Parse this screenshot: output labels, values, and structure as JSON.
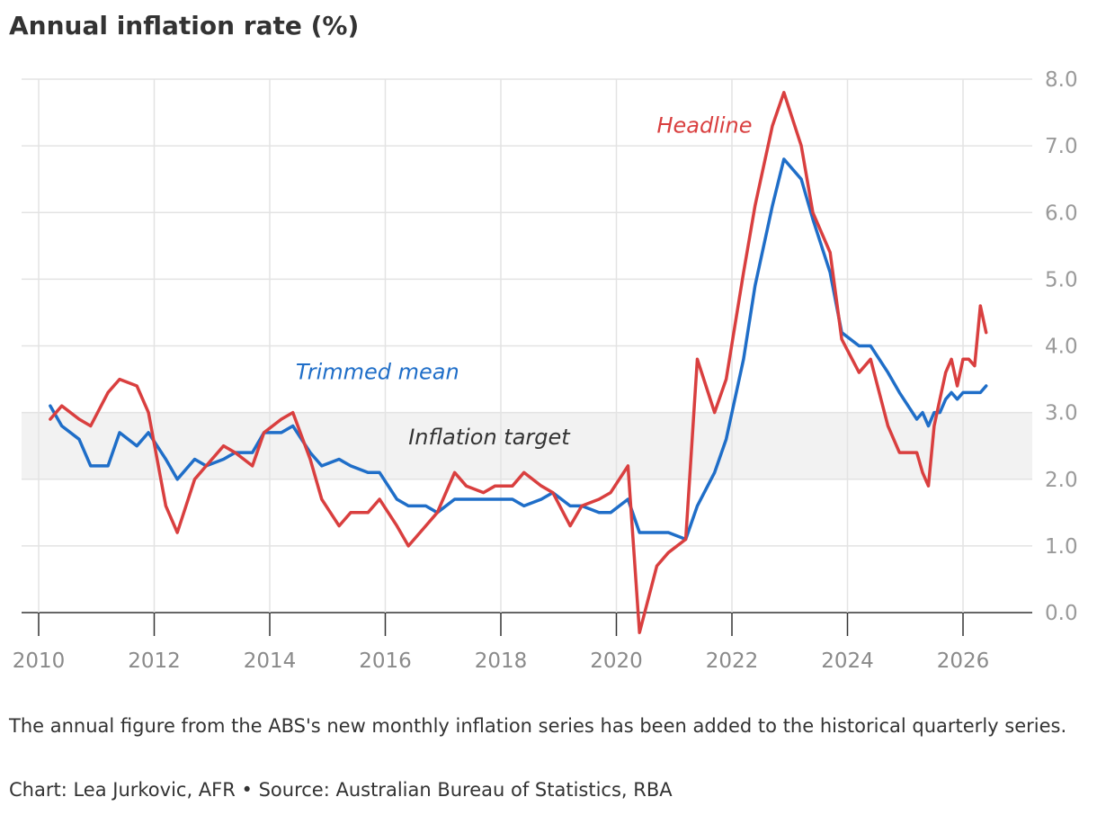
{
  "title": "Annual inflation rate (%)",
  "note": "The annual figure from the ABS's new monthly inflation series has been added to the historical quarterly series.",
  "source": "Chart: Lea Jurkovic, AFR • Source: Australian Bureau of Statistics, RBA",
  "chart_data": {
    "type": "line",
    "title": "Annual inflation rate (%)",
    "xlim": [
      2010,
      2027
    ],
    "ylim": [
      -0.3,
      8.0
    ],
    "x_ticks": [
      2010,
      2012,
      2014,
      2016,
      2018,
      2020,
      2022,
      2024,
      2026
    ],
    "y_ticks": [
      0.0,
      1.0,
      2.0,
      3.0,
      4.0,
      5.0,
      6.0,
      7.0,
      8.0
    ],
    "y_tick_labels": [
      "0.0",
      "1.0",
      "2.0",
      "3.0",
      "4.0",
      "5.0",
      "6.0",
      "7.0",
      "8.0"
    ],
    "y_axis_side": "right",
    "grid": true,
    "colors": {
      "headline": "#d93f3f",
      "trimmed_mean": "#1f6ec8",
      "target_band": "#f2f2f2",
      "grid": "#e3e3e3"
    },
    "target_band": {
      "label": "Inflation target",
      "min": 2.0,
      "max": 3.0
    },
    "series": [
      {
        "name": "Headline",
        "color": "#d93f3f",
        "points": [
          [
            2010.2,
            2.9
          ],
          [
            2010.4,
            3.1
          ],
          [
            2010.7,
            2.9
          ],
          [
            2010.9,
            2.8
          ],
          [
            2011.2,
            3.3
          ],
          [
            2011.4,
            3.5
          ],
          [
            2011.7,
            3.4
          ],
          [
            2011.9,
            3.0
          ],
          [
            2012.2,
            1.6
          ],
          [
            2012.4,
            1.2
          ],
          [
            2012.7,
            2.0
          ],
          [
            2012.9,
            2.2
          ],
          [
            2013.2,
            2.5
          ],
          [
            2013.4,
            2.4
          ],
          [
            2013.7,
            2.2
          ],
          [
            2013.9,
            2.7
          ],
          [
            2014.2,
            2.9
          ],
          [
            2014.4,
            3.0
          ],
          [
            2014.7,
            2.3
          ],
          [
            2014.9,
            1.7
          ],
          [
            2015.2,
            1.3
          ],
          [
            2015.4,
            1.5
          ],
          [
            2015.7,
            1.5
          ],
          [
            2015.9,
            1.7
          ],
          [
            2016.2,
            1.3
          ],
          [
            2016.4,
            1.0
          ],
          [
            2016.7,
            1.3
          ],
          [
            2016.9,
            1.5
          ],
          [
            2017.2,
            2.1
          ],
          [
            2017.4,
            1.9
          ],
          [
            2017.7,
            1.8
          ],
          [
            2017.9,
            1.9
          ],
          [
            2018.2,
            1.9
          ],
          [
            2018.4,
            2.1
          ],
          [
            2018.7,
            1.9
          ],
          [
            2018.9,
            1.8
          ],
          [
            2019.2,
            1.3
          ],
          [
            2019.4,
            1.6
          ],
          [
            2019.7,
            1.7
          ],
          [
            2019.9,
            1.8
          ],
          [
            2020.2,
            2.2
          ],
          [
            2020.4,
            -0.3
          ],
          [
            2020.7,
            0.7
          ],
          [
            2020.9,
            0.9
          ],
          [
            2021.2,
            1.1
          ],
          [
            2021.4,
            3.8
          ],
          [
            2021.7,
            3.0
          ],
          [
            2021.9,
            3.5
          ],
          [
            2022.2,
            5.1
          ],
          [
            2022.4,
            6.1
          ],
          [
            2022.7,
            7.3
          ],
          [
            2022.9,
            7.8
          ],
          [
            2023.2,
            7.0
          ],
          [
            2023.4,
            6.0
          ],
          [
            2023.7,
            5.4
          ],
          [
            2023.9,
            4.1
          ],
          [
            2024.2,
            3.6
          ],
          [
            2024.4,
            3.8
          ],
          [
            2024.7,
            2.8
          ],
          [
            2024.9,
            2.4
          ],
          [
            2025.2,
            2.4
          ],
          [
            2025.3,
            2.1
          ],
          [
            2025.4,
            1.9
          ],
          [
            2025.5,
            2.8
          ],
          [
            2025.6,
            3.2
          ],
          [
            2025.7,
            3.6
          ],
          [
            2025.8,
            3.8
          ],
          [
            2025.9,
            3.4
          ],
          [
            2026.0,
            3.8
          ],
          [
            2026.1,
            3.8
          ],
          [
            2026.2,
            3.7
          ],
          [
            2026.3,
            4.6
          ],
          [
            2026.4,
            4.2
          ]
        ]
      },
      {
        "name": "Trimmed mean",
        "color": "#1f6ec8",
        "points": [
          [
            2010.2,
            3.1
          ],
          [
            2010.4,
            2.8
          ],
          [
            2010.7,
            2.6
          ],
          [
            2010.9,
            2.2
          ],
          [
            2011.2,
            2.2
          ],
          [
            2011.4,
            2.7
          ],
          [
            2011.7,
            2.5
          ],
          [
            2011.9,
            2.7
          ],
          [
            2012.2,
            2.3
          ],
          [
            2012.4,
            2.0
          ],
          [
            2012.7,
            2.3
          ],
          [
            2012.9,
            2.2
          ],
          [
            2013.2,
            2.3
          ],
          [
            2013.4,
            2.4
          ],
          [
            2013.7,
            2.4
          ],
          [
            2013.9,
            2.7
          ],
          [
            2014.2,
            2.7
          ],
          [
            2014.4,
            2.8
          ],
          [
            2014.7,
            2.4
          ],
          [
            2014.9,
            2.2
          ],
          [
            2015.2,
            2.3
          ],
          [
            2015.4,
            2.2
          ],
          [
            2015.7,
            2.1
          ],
          [
            2015.9,
            2.1
          ],
          [
            2016.2,
            1.7
          ],
          [
            2016.4,
            1.6
          ],
          [
            2016.7,
            1.6
          ],
          [
            2016.9,
            1.5
          ],
          [
            2017.2,
            1.7
          ],
          [
            2017.4,
            1.7
          ],
          [
            2017.7,
            1.7
          ],
          [
            2017.9,
            1.7
          ],
          [
            2018.2,
            1.7
          ],
          [
            2018.4,
            1.6
          ],
          [
            2018.7,
            1.7
          ],
          [
            2018.9,
            1.8
          ],
          [
            2019.2,
            1.6
          ],
          [
            2019.4,
            1.6
          ],
          [
            2019.7,
            1.5
          ],
          [
            2019.9,
            1.5
          ],
          [
            2020.2,
            1.7
          ],
          [
            2020.4,
            1.2
          ],
          [
            2020.7,
            1.2
          ],
          [
            2020.9,
            1.2
          ],
          [
            2021.2,
            1.1
          ],
          [
            2021.4,
            1.6
          ],
          [
            2021.7,
            2.1
          ],
          [
            2021.9,
            2.6
          ],
          [
            2022.2,
            3.8
          ],
          [
            2022.4,
            4.9
          ],
          [
            2022.7,
            6.1
          ],
          [
            2022.9,
            6.8
          ],
          [
            2023.2,
            6.5
          ],
          [
            2023.4,
            5.9
          ],
          [
            2023.7,
            5.1
          ],
          [
            2023.9,
            4.2
          ],
          [
            2024.2,
            4.0
          ],
          [
            2024.4,
            4.0
          ],
          [
            2024.7,
            3.6
          ],
          [
            2024.9,
            3.3
          ],
          [
            2025.2,
            2.9
          ],
          [
            2025.3,
            3.0
          ],
          [
            2025.4,
            2.8
          ],
          [
            2025.5,
            3.0
          ],
          [
            2025.6,
            3.0
          ],
          [
            2025.7,
            3.2
          ],
          [
            2025.8,
            3.3
          ],
          [
            2025.9,
            3.2
          ],
          [
            2026.0,
            3.3
          ],
          [
            2026.1,
            3.3
          ],
          [
            2026.2,
            3.3
          ],
          [
            2026.3,
            3.3
          ],
          [
            2026.4,
            3.4
          ]
        ]
      }
    ],
    "annotations": [
      {
        "text": "Headline",
        "series": "Headline",
        "x": 2020.7,
        "y": 7.2
      },
      {
        "text": "Trimmed mean",
        "series": "Trimmed mean",
        "x": 2014.45,
        "y": 3.5
      },
      {
        "text": "Inflation target",
        "x": 2016.4,
        "y": 2.52
      }
    ]
  }
}
